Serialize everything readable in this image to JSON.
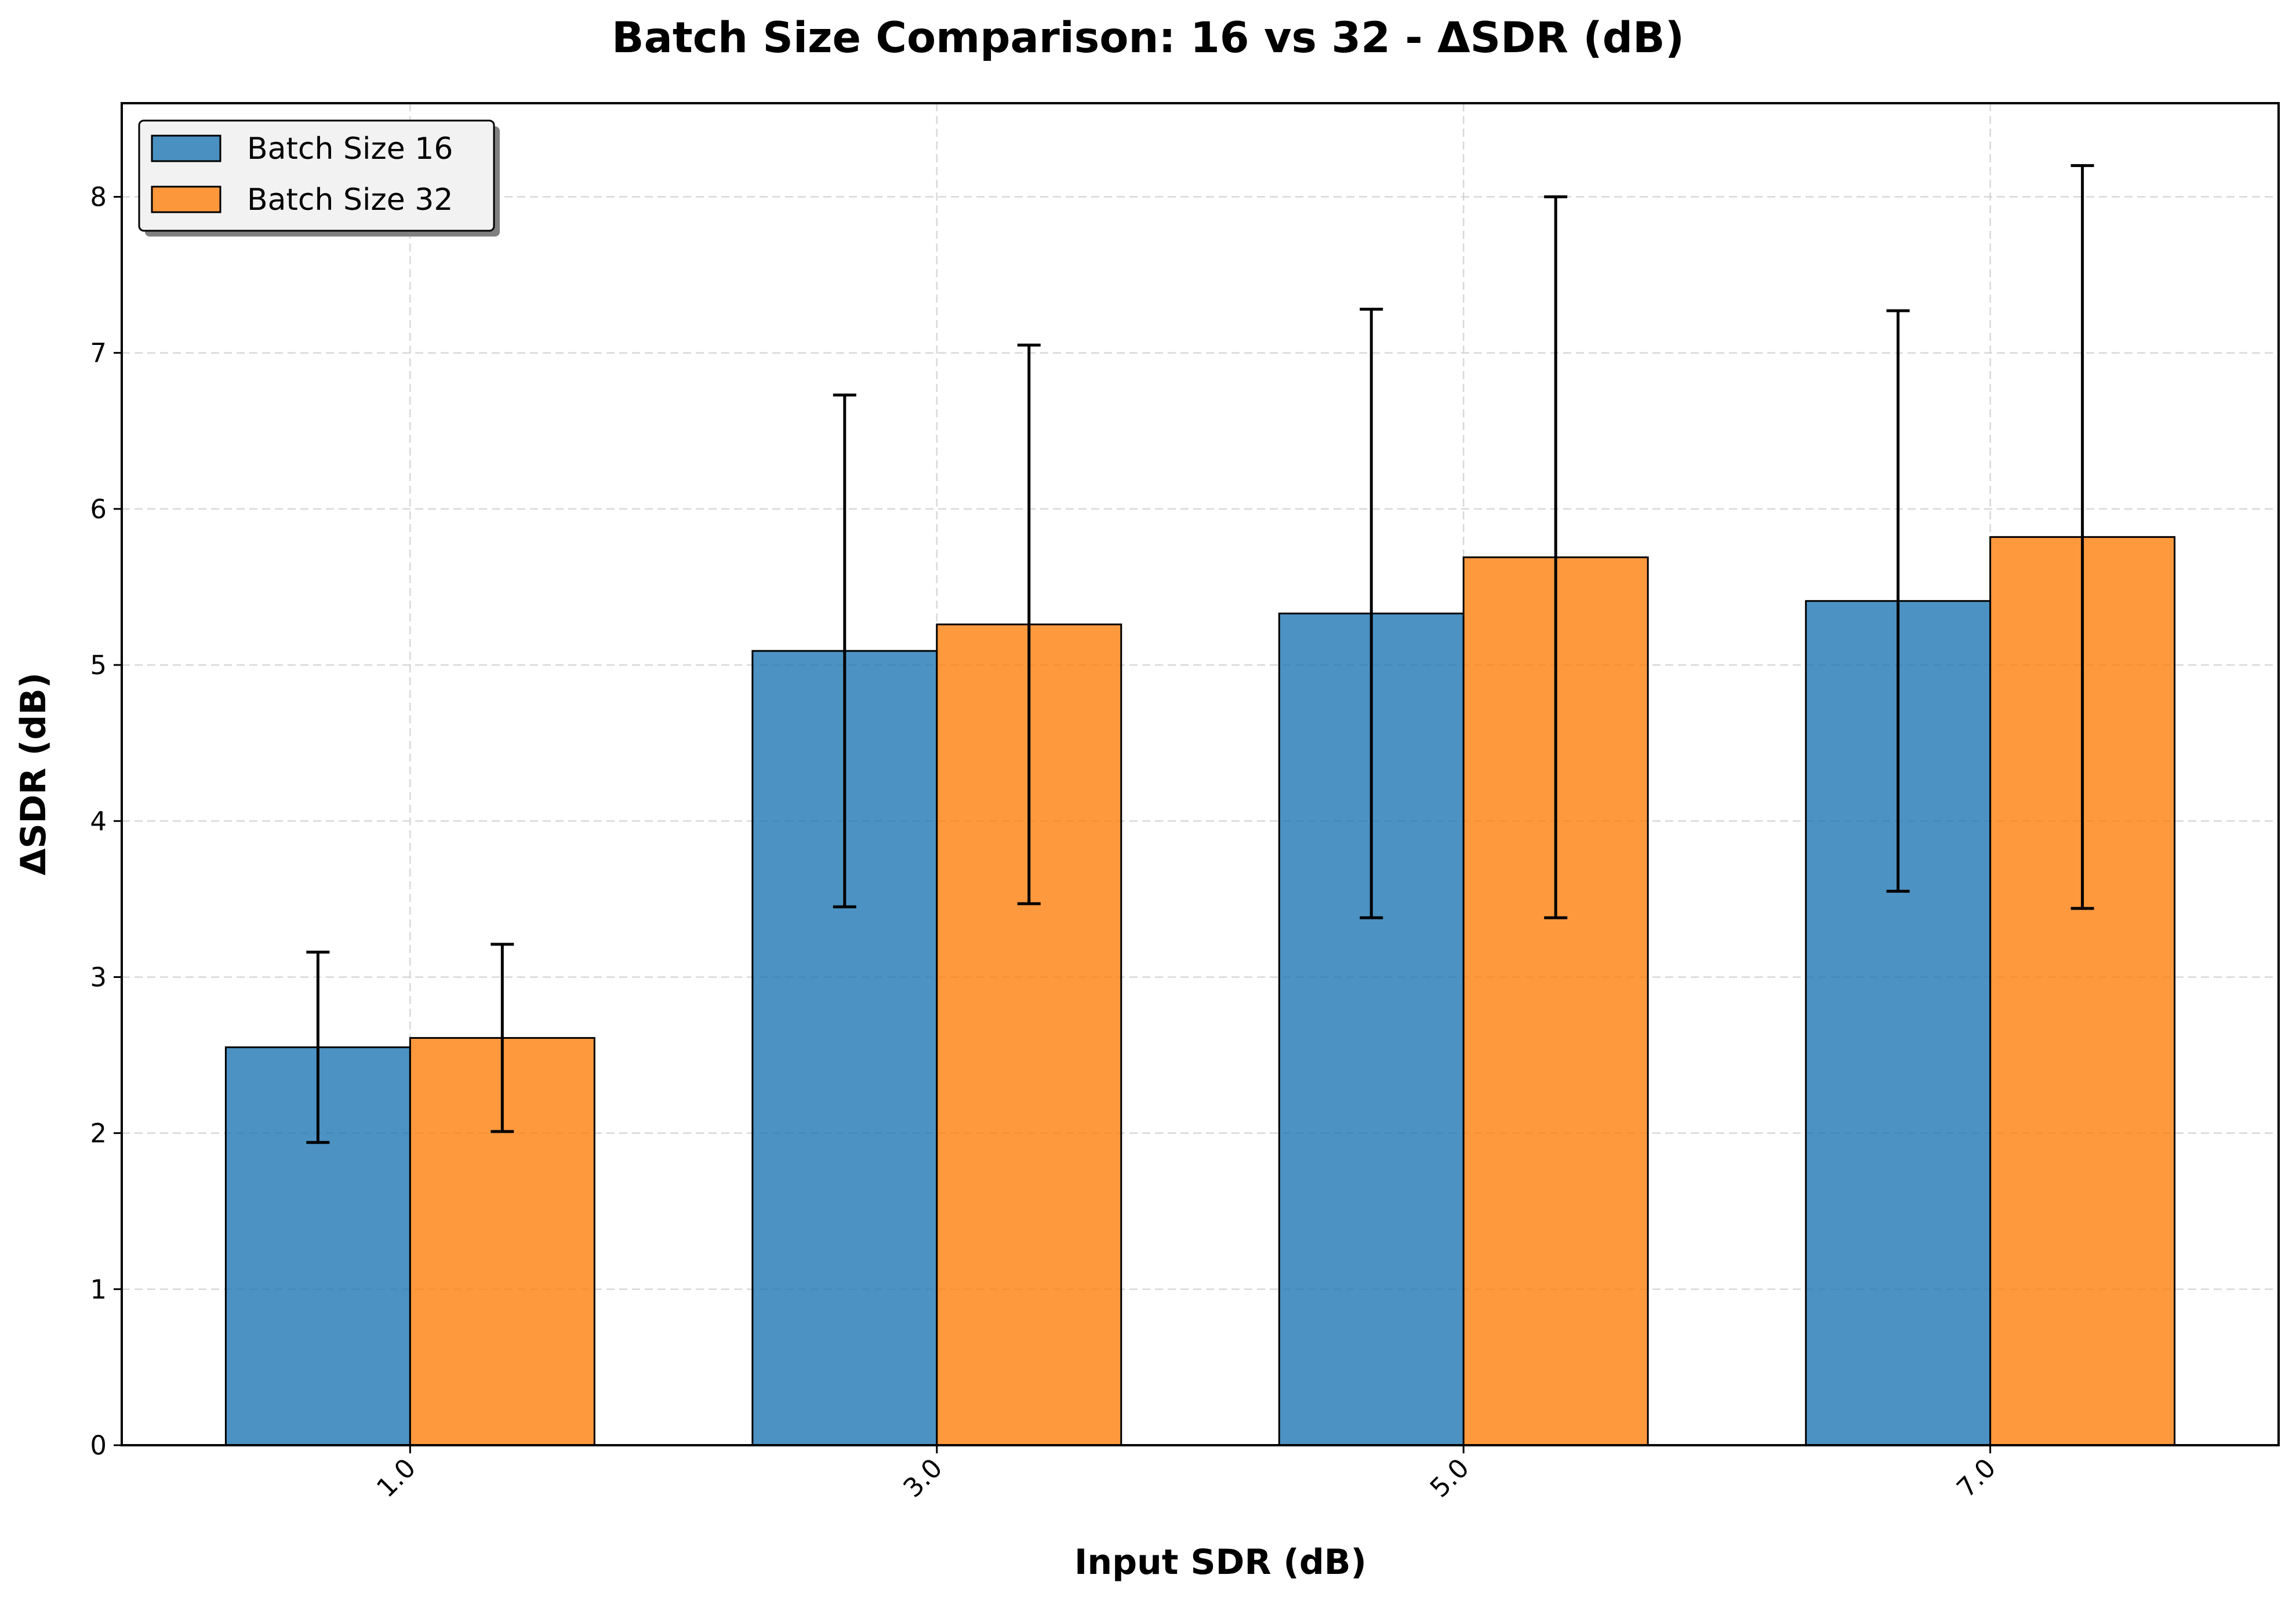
{
  "chart_data": {
    "type": "bar",
    "title": "Batch Size Comparison: 16 vs 32 - ΔSDR (dB)",
    "xlabel": "Input SDR (dB)",
    "ylabel": "ΔSDR (dB)",
    "categories": [
      "1.0",
      "3.0",
      "5.0",
      "7.0"
    ],
    "ylim": [
      0,
      8.6
    ],
    "yticks": [
      "0",
      "1",
      "2",
      "3",
      "4",
      "5",
      "6",
      "7",
      "8"
    ],
    "grid": true,
    "legend_position": "top-left",
    "series": [
      {
        "name": "Batch Size 16",
        "color": "#1f77b4",
        "values": [
          2.55,
          5.09,
          5.33,
          5.41
        ],
        "errors": [
          0.61,
          1.64,
          1.95,
          1.86
        ]
      },
      {
        "name": "Batch Size 32",
        "color": "#ff7f0e",
        "values": [
          2.61,
          5.26,
          5.69,
          5.82
        ],
        "errors": [
          0.6,
          1.79,
          2.31,
          2.38
        ]
      }
    ]
  }
}
